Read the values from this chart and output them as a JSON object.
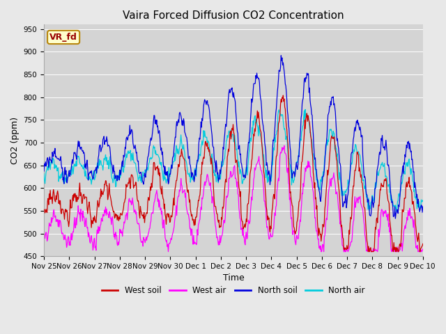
{
  "title": "Vaira Forced Diffusion CO2 Concentration",
  "xlabel": "Time",
  "ylabel": "CO2 (ppm)",
  "ylim": [
    450,
    960
  ],
  "yticks": [
    450,
    500,
    550,
    600,
    650,
    700,
    750,
    800,
    850,
    900,
    950
  ],
  "annotation_text": "VR_fd",
  "annotation_box_facecolor": "#ffffcc",
  "annotation_box_edgecolor": "#b8860b",
  "annotation_text_color": "#990000",
  "colors": {
    "west_soil": "#cc0000",
    "west_air": "#ff00ff",
    "north_soil": "#0000dd",
    "north_air": "#00ccdd"
  },
  "legend_labels": [
    "West soil",
    "West air",
    "North soil",
    "North air"
  ],
  "fig_facecolor": "#e8e8e8",
  "ax_facecolor": "#d4d4d4",
  "grid_color": "#ffffff",
  "x_tick_labels": [
    "Nov 25",
    "Nov 26",
    "Nov 27",
    "Nov 28",
    "Nov 29",
    "Nov 30",
    "Dec 1",
    "Dec 2",
    "Dec 3",
    "Dec 4",
    "Dec 5",
    "Dec 6",
    "Dec 7",
    "Dec 8",
    "Dec 9",
    "Dec 10"
  ],
  "title_fontsize": 11,
  "axis_label_fontsize": 9,
  "tick_fontsize": 7.5,
  "legend_fontsize": 8.5
}
